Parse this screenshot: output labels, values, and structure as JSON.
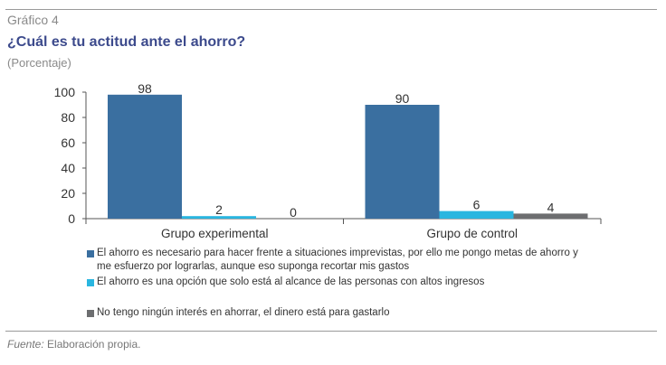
{
  "figure_label": "Gráfico 4",
  "title": "¿Cuál es tu actitud ante el ahorro?",
  "subtitle": "(Porcentaje)",
  "source": {
    "label": "Fuente:",
    "text": "Elaboración propia."
  },
  "colors": {
    "series_1": "#3a6fa0",
    "series_2": "#29b6e0",
    "series_3": "#6d6e70"
  },
  "chart_data": {
    "type": "bar",
    "categories": [
      "Grupo experimental",
      "Grupo de control"
    ],
    "series": [
      {
        "name": "El ahorro es necesario para hacer frente a situaciones imprevistas, por ello me pongo metas de ahorro y me esfuerzo por lograrlas, aunque eso suponga recortar mis gastos",
        "values": [
          98,
          90
        ]
      },
      {
        "name": "El ahorro es una opción que solo está al alcance de las personas con altos ingresos",
        "values": [
          2,
          6
        ]
      },
      {
        "name": "No tengo ningún interés en ahorrar, el dinero está para gastarlo",
        "values": [
          0,
          4
        ]
      }
    ],
    "yticks": [
      "0",
      "20",
      "40",
      "60",
      "80",
      "100"
    ],
    "ylim": [
      0,
      100
    ],
    "grid": false,
    "legend_position": "bottom"
  }
}
